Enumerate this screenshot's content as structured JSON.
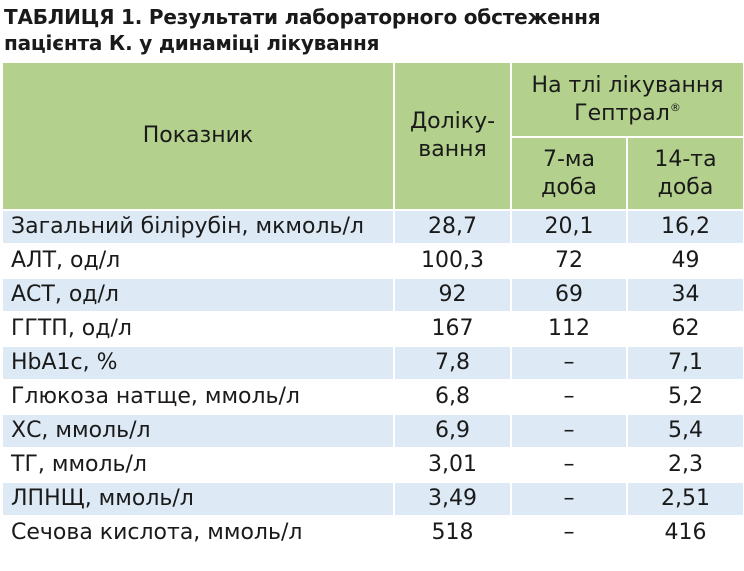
{
  "title_line1": "ТАБЛИЦЯ 1. Результати лабораторного обстеження",
  "title_line2": "пацієнта К. у динаміці лікування",
  "header": {
    "indicator": "Показник",
    "before_line1": "Доліку-",
    "before_line2": "вання",
    "on_treatment_line1": "На тлі лікування",
    "on_treatment_line2": "Гептрал",
    "registered_mark": "®",
    "day7_line1": "7-ма",
    "day7_line2": "доба",
    "day14_line1": "14-та",
    "day14_line2": "доба"
  },
  "rows": [
    {
      "name": "Загальний білірубін, мкмоль/л",
      "before": "28,7",
      "day7": "20,1",
      "day14": "16,2"
    },
    {
      "name": "АЛТ, од/л",
      "before": "100,3",
      "day7": "72",
      "day14": "49"
    },
    {
      "name": "АСТ, од/л",
      "before": "92",
      "day7": "69",
      "day14": "34"
    },
    {
      "name": "ГГТП, од/л",
      "before": "167",
      "day7": "112",
      "day14": "62"
    },
    {
      "name": "HbA1c, %",
      "before": "7,8",
      "day7": "–",
      "day14": "7,1"
    },
    {
      "name": "Глюкоза натще, ммоль/л",
      "before": "6,8",
      "day7": "–",
      "day14": "5,2"
    },
    {
      "name": "ХС, ммоль/л",
      "before": "6,9",
      "day7": "–",
      "day14": "5,4"
    },
    {
      "name": "ТГ, ммоль/л",
      "before": "3,01",
      "day7": "–",
      "day14": "2,3"
    },
    {
      "name": "ЛПНЩ, ммоль/л",
      "before": "3,49",
      "day7": "–",
      "day14": "2,51"
    },
    {
      "name": "Сечова кислота, ммоль/л",
      "before": "518",
      "day7": "–",
      "day14": "416"
    }
  ]
}
